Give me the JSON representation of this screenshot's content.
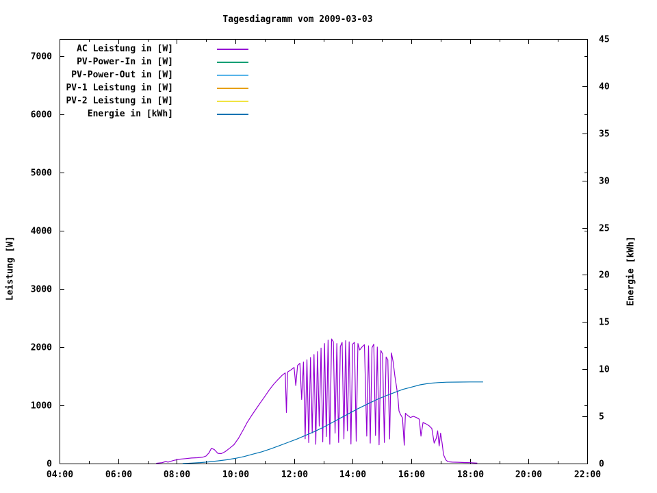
{
  "title": "Tagesdiagramm vom 2009-03-03",
  "axes": {
    "left_label": "Leistung [W]",
    "right_label": "Energie [kWh]"
  },
  "chart_data": {
    "type": "line",
    "title": "Tagesdiagramm vom 2009-03-03",
    "grid": false,
    "legend_position": "top-left-inside",
    "background_color": "#ffffff",
    "axis_color": "#000000",
    "x_axis": {
      "unit": "time of day",
      "range": [
        4,
        22
      ],
      "major_tick_hours": [
        4,
        6,
        8,
        10,
        12,
        14,
        16,
        18,
        20,
        22
      ],
      "major_tick_labels": [
        "04:00",
        "06:00",
        "08:00",
        "10:00",
        "12:00",
        "14:00",
        "16:00",
        "18:00",
        "20:00",
        "22:00"
      ],
      "minor_tick_hours": [
        5,
        7,
        9,
        11,
        13,
        15,
        17,
        19,
        21
      ]
    },
    "y_left": {
      "label": "Leistung [W]",
      "range": [
        0,
        7294
      ],
      "tick_values": [
        0,
        1000,
        2000,
        3000,
        4000,
        5000,
        6000,
        7000
      ],
      "tick_labels": [
        "0",
        "1000",
        "2000",
        "3000",
        "4000",
        "5000",
        "6000",
        "7000"
      ]
    },
    "y_right": {
      "label": "Energie [kWh]",
      "range": [
        0,
        45
      ],
      "tick_values": [
        0,
        5,
        10,
        15,
        20,
        25,
        30,
        35,
        40,
        45
      ],
      "tick_labels": [
        "0",
        "5",
        "10",
        "15",
        "20",
        "25",
        "30",
        "35",
        "40",
        "45"
      ]
    },
    "series": [
      {
        "name": "AC Leistung in [W]",
        "color": "#9400d3",
        "axis": "left",
        "points": [
          [
            7.3,
            5
          ],
          [
            7.5,
            15
          ],
          [
            7.62,
            35
          ],
          [
            7.7,
            25
          ],
          [
            7.9,
            55
          ],
          [
            8.1,
            75
          ],
          [
            8.3,
            85
          ],
          [
            8.5,
            95
          ],
          [
            8.7,
            100
          ],
          [
            8.9,
            112
          ],
          [
            9.0,
            130
          ],
          [
            9.1,
            185
          ],
          [
            9.18,
            262
          ],
          [
            9.28,
            240
          ],
          [
            9.4,
            175
          ],
          [
            9.52,
            170
          ],
          [
            9.65,
            205
          ],
          [
            9.8,
            262
          ],
          [
            9.95,
            325
          ],
          [
            10.1,
            430
          ],
          [
            10.25,
            565
          ],
          [
            10.4,
            705
          ],
          [
            10.55,
            825
          ],
          [
            10.7,
            935
          ],
          [
            10.85,
            1045
          ],
          [
            11.0,
            1150
          ],
          [
            11.15,
            1262
          ],
          [
            11.3,
            1360
          ],
          [
            11.45,
            1442
          ],
          [
            11.6,
            1520
          ],
          [
            11.7,
            1558
          ],
          [
            11.74,
            878
          ],
          [
            11.78,
            1572
          ],
          [
            11.9,
            1612
          ],
          [
            12.0,
            1652
          ],
          [
            12.06,
            1340
          ],
          [
            12.12,
            1683
          ],
          [
            12.2,
            1722
          ],
          [
            12.26,
            1100
          ],
          [
            12.32,
            1745
          ],
          [
            12.38,
            425
          ],
          [
            12.44,
            1782
          ],
          [
            12.5,
            360
          ],
          [
            12.56,
            1822
          ],
          [
            12.62,
            525
          ],
          [
            12.68,
            1872
          ],
          [
            12.74,
            330
          ],
          [
            12.8,
            1922
          ],
          [
            12.86,
            645
          ],
          [
            12.92,
            1983
          ],
          [
            12.98,
            372
          ],
          [
            13.04,
            2062
          ],
          [
            13.1,
            465
          ],
          [
            13.16,
            2122
          ],
          [
            13.22,
            332
          ],
          [
            13.28,
            2140
          ],
          [
            13.34,
            2092
          ],
          [
            13.4,
            522
          ],
          [
            13.46,
            2062
          ],
          [
            13.52,
            362
          ],
          [
            13.58,
            2012
          ],
          [
            13.64,
            2082
          ],
          [
            13.7,
            425
          ],
          [
            13.76,
            2112
          ],
          [
            13.82,
            562
          ],
          [
            13.88,
            2092
          ],
          [
            13.94,
            335
          ],
          [
            14.0,
            2052
          ],
          [
            14.06,
            2082
          ],
          [
            14.12,
            385
          ],
          [
            14.18,
            2062
          ],
          [
            14.24,
            1952
          ],
          [
            14.32,
            2002
          ],
          [
            14.4,
            2042
          ],
          [
            14.48,
            472
          ],
          [
            14.54,
            2022
          ],
          [
            14.6,
            352
          ],
          [
            14.66,
            1992
          ],
          [
            14.72,
            2052
          ],
          [
            14.78,
            482
          ],
          [
            14.84,
            2002
          ],
          [
            14.9,
            322
          ],
          [
            14.96,
            1942
          ],
          [
            15.02,
            1882
          ],
          [
            15.08,
            362
          ],
          [
            15.14,
            1832
          ],
          [
            15.2,
            1782
          ],
          [
            15.26,
            422
          ],
          [
            15.32,
            1902
          ],
          [
            15.38,
            1752
          ],
          [
            15.44,
            1502
          ],
          [
            15.5,
            1300
          ],
          [
            15.54,
            1150
          ],
          [
            15.58,
            905
          ],
          [
            15.62,
            855
          ],
          [
            15.7,
            785
          ],
          [
            15.76,
            315
          ],
          [
            15.8,
            865
          ],
          [
            15.88,
            825
          ],
          [
            15.97,
            792
          ],
          [
            16.07,
            812
          ],
          [
            16.17,
            792
          ],
          [
            16.27,
            762
          ],
          [
            16.33,
            472
          ],
          [
            16.4,
            705
          ],
          [
            16.5,
            682
          ],
          [
            16.6,
            652
          ],
          [
            16.7,
            602
          ],
          [
            16.78,
            352
          ],
          [
            16.85,
            432
          ],
          [
            16.9,
            562
          ],
          [
            16.95,
            302
          ],
          [
            17.0,
            522
          ],
          [
            17.05,
            352
          ],
          [
            17.1,
            152
          ],
          [
            17.18,
            62
          ],
          [
            17.25,
            32
          ],
          [
            17.4,
            25
          ],
          [
            17.6,
            22
          ],
          [
            17.8,
            18
          ],
          [
            18.0,
            15
          ],
          [
            18.15,
            10
          ],
          [
            18.25,
            8
          ]
        ]
      },
      {
        "name": "PV-Power-In in [W]",
        "color": "#009e73",
        "axis": "left",
        "points": []
      },
      {
        "name": "PV-Power-Out in [W]",
        "color": "#56b4e9",
        "axis": "left",
        "points": []
      },
      {
        "name": "PV-1 Leistung in [W]",
        "color": "#e69f00",
        "axis": "left",
        "points": []
      },
      {
        "name": "PV-2 Leistung in [W]",
        "color": "#f0e442",
        "axis": "left",
        "points": []
      },
      {
        "name": "Energie in [kWh]",
        "color": "#0072b2",
        "axis": "right",
        "points": [
          [
            8.2,
            0
          ],
          [
            8.5,
            0.05
          ],
          [
            8.8,
            0.1
          ],
          [
            9.1,
            0.18
          ],
          [
            9.4,
            0.28
          ],
          [
            9.7,
            0.4
          ],
          [
            10.0,
            0.55
          ],
          [
            10.3,
            0.75
          ],
          [
            10.6,
            1.0
          ],
          [
            10.9,
            1.25
          ],
          [
            11.2,
            1.55
          ],
          [
            11.5,
            1.9
          ],
          [
            11.8,
            2.25
          ],
          [
            12.1,
            2.6
          ],
          [
            12.4,
            3.0
          ],
          [
            12.7,
            3.4
          ],
          [
            13.0,
            3.85
          ],
          [
            13.3,
            4.35
          ],
          [
            13.6,
            4.85
          ],
          [
            13.9,
            5.35
          ],
          [
            14.2,
            5.85
          ],
          [
            14.5,
            6.3
          ],
          [
            14.8,
            6.75
          ],
          [
            15.1,
            7.15
          ],
          [
            15.4,
            7.5
          ],
          [
            15.7,
            7.85
          ],
          [
            16.0,
            8.1
          ],
          [
            16.3,
            8.35
          ],
          [
            16.6,
            8.5
          ],
          [
            16.9,
            8.58
          ],
          [
            17.2,
            8.62
          ],
          [
            17.6,
            8.64
          ],
          [
            18.0,
            8.65
          ],
          [
            18.45,
            8.65
          ]
        ]
      }
    ]
  }
}
